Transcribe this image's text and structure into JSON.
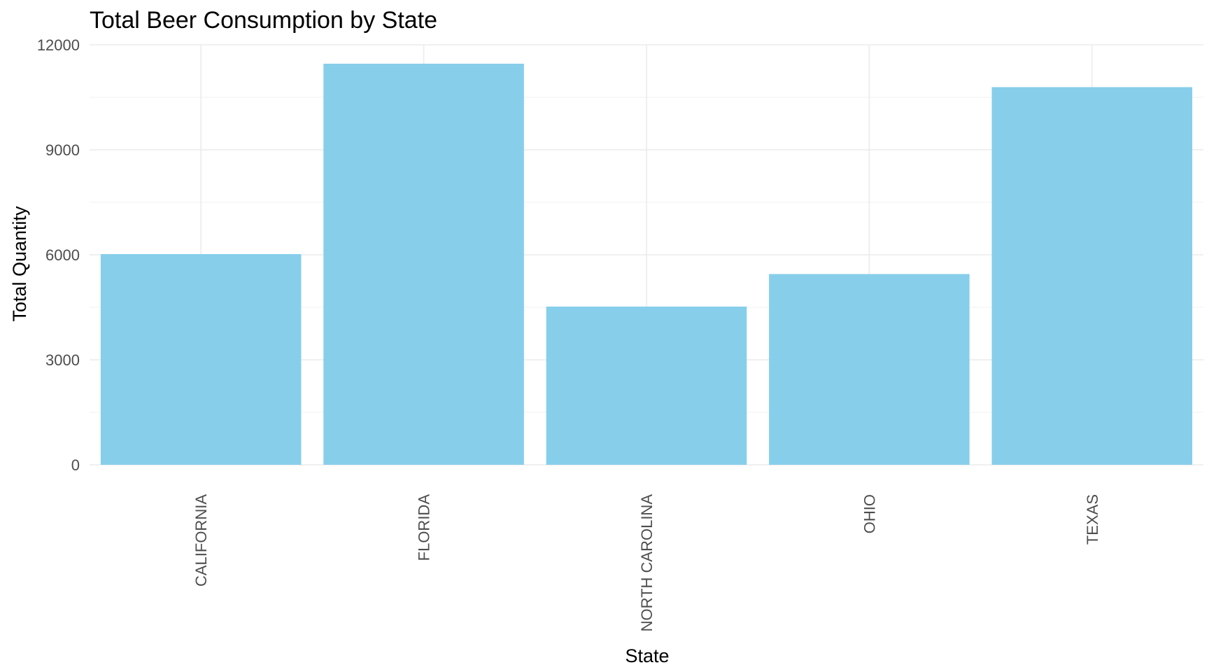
{
  "chart_data": {
    "type": "bar",
    "title": "Total Beer Consumption by State",
    "xlabel": "State",
    "ylabel": "Total Quantity",
    "categories": [
      "CALIFORNIA",
      "FLORIDA",
      "NORTH CAROLINA",
      "OHIO",
      "TEXAS"
    ],
    "values": [
      6020,
      11460,
      4520,
      5450,
      10790
    ],
    "ylim": [
      0,
      12000
    ],
    "yticks": [
      0,
      3000,
      6000,
      9000,
      12000
    ],
    "ytick_labels": [
      "0",
      "3000",
      "6000",
      "9000",
      "12000"
    ],
    "grid": true,
    "legend": "none",
    "bar_color": "#87CEEB"
  }
}
